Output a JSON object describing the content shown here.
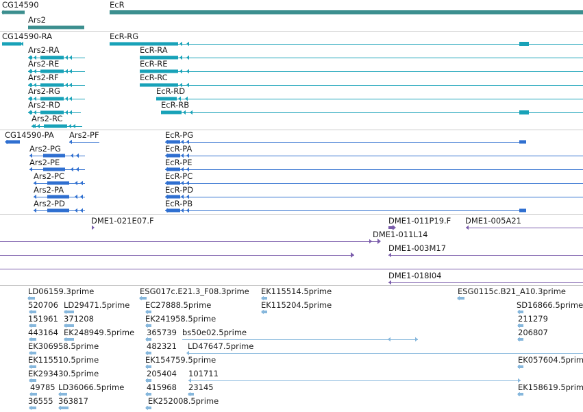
{
  "colors": {
    "gene": "#3c8f8f",
    "transcript": "#18a2b8",
    "protein": "#2f6fd0",
    "clone": "#7a5cab",
    "est": "#86b7dc",
    "divider": "#c8c8c8"
  },
  "tracks": {
    "genes": {
      "items": [
        {
          "id": "g-cg14590",
          "label": "CG14590"
        },
        {
          "id": "g-ecr",
          "label": "EcR"
        },
        {
          "id": "g-ars2",
          "label": "Ars2"
        }
      ]
    },
    "transcripts": {
      "items": [
        {
          "id": "t-cg14590-ra",
          "label": "CG14590-RA"
        },
        {
          "id": "t-ecr-rg",
          "label": "EcR-RG"
        },
        {
          "id": "t-ars2-ra",
          "label": "Ars2-RA"
        },
        {
          "id": "t-ecr-ra",
          "label": "EcR-RA"
        },
        {
          "id": "t-ars2-re",
          "label": "Ars2-RE"
        },
        {
          "id": "t-ecr-re",
          "label": "EcR-RE"
        },
        {
          "id": "t-ars2-rf",
          "label": "Ars2-RF"
        },
        {
          "id": "t-ecr-rc",
          "label": "EcR-RC"
        },
        {
          "id": "t-ars2-rg",
          "label": "Ars2-RG"
        },
        {
          "id": "t-ecr-rd",
          "label": "EcR-RD"
        },
        {
          "id": "t-ars2-rd",
          "label": "Ars2-RD"
        },
        {
          "id": "t-ecr-rb",
          "label": "EcR-RB"
        },
        {
          "id": "t-ars2-rc",
          "label": "Ars2-RC"
        }
      ]
    },
    "proteins": {
      "items": [
        {
          "id": "p-cg14590-pa",
          "label": "CG14590-PA"
        },
        {
          "id": "p-ars2-pf",
          "label": "Ars2-PF"
        },
        {
          "id": "p-ecr-pg",
          "label": "EcR-PG"
        },
        {
          "id": "p-ars2-pg",
          "label": "Ars2-PG"
        },
        {
          "id": "p-ecr-pa",
          "label": "EcR-PA"
        },
        {
          "id": "p-ars2-pe",
          "label": "Ars2-PE"
        },
        {
          "id": "p-ecr-pe",
          "label": "EcR-PE"
        },
        {
          "id": "p-ars2-pc",
          "label": "Ars2-PC"
        },
        {
          "id": "p-ecr-pc",
          "label": "EcR-PC"
        },
        {
          "id": "p-ars2-pa",
          "label": "Ars2-PA"
        },
        {
          "id": "p-ecr-pd",
          "label": "EcR-PD"
        },
        {
          "id": "p-ars2-pd",
          "label": "Ars2-PD"
        },
        {
          "id": "p-ecr-pb",
          "label": "EcR-PB"
        }
      ]
    },
    "clones": {
      "items": [
        {
          "id": "c-021e07",
          "label": "DME1-021E07.F"
        },
        {
          "id": "c-011p19",
          "label": "DME1-011P19.F"
        },
        {
          "id": "c-005a21",
          "label": "DME1-005A21"
        },
        {
          "id": "c-011l14",
          "label": "DME1-011L14"
        },
        {
          "id": "c-003m17",
          "label": "DME1-003M17"
        },
        {
          "id": "c-018i04",
          "label": "DME1-018I04"
        }
      ]
    },
    "ests": {
      "items": [
        {
          "id": "e-ld06159",
          "label": "LD06159.3prime"
        },
        {
          "id": "e-esg017c",
          "label": "ESG017c.E21.3_F08.3prime"
        },
        {
          "id": "e-ek115514",
          "label": "EK115514.5prime"
        },
        {
          "id": "e-esg0115c",
          "label": "ESG0115c.B21_A10.3prime"
        },
        {
          "id": "e-520706",
          "label": "520706"
        },
        {
          "id": "e-ld29471",
          "label": "LD29471.5prime"
        },
        {
          "id": "e-ec27888",
          "label": "EC27888.5prime"
        },
        {
          "id": "e-ek115204",
          "label": "EK115204.5prime"
        },
        {
          "id": "e-sd16866",
          "label": "SD16866.5prime"
        },
        {
          "id": "e-151961",
          "label": "151961"
        },
        {
          "id": "e-371208",
          "label": "371208"
        },
        {
          "id": "e-ek241958",
          "label": "EK241958.5prime"
        },
        {
          "id": "e-211279",
          "label": "211279"
        },
        {
          "id": "e-443164",
          "label": "443164"
        },
        {
          "id": "e-ek248949",
          "label": "EK248949.5prime"
        },
        {
          "id": "e-365739",
          "label": "365739"
        },
        {
          "id": "e-bs50e02",
          "label": "bs50e02.5prime"
        },
        {
          "id": "e-206807",
          "label": "206807"
        },
        {
          "id": "e-ek306958",
          "label": "EK306958.5prime"
        },
        {
          "id": "e-482321",
          "label": "482321"
        },
        {
          "id": "e-ld47647",
          "label": "LD47647.5prime"
        },
        {
          "id": "e-ek115510",
          "label": "EK115510.5prime"
        },
        {
          "id": "e-ek154759",
          "label": "EK154759.5prime"
        },
        {
          "id": "e-ek057604",
          "label": "EK057604.5prime"
        },
        {
          "id": "e-ek293430",
          "label": "EK293430.5prime"
        },
        {
          "id": "e-205404",
          "label": "205404"
        },
        {
          "id": "e-101711",
          "label": "101711"
        },
        {
          "id": "e-49785",
          "label": "49785"
        },
        {
          "id": "e-ld36066",
          "label": "LD36066.5prime"
        },
        {
          "id": "e-415968",
          "label": "415968"
        },
        {
          "id": "e-23145",
          "label": "23145"
        },
        {
          "id": "e-ek158619",
          "label": "EK158619.5prime"
        },
        {
          "id": "e-36555",
          "label": "36555"
        },
        {
          "id": "e-363817",
          "label": "363817"
        },
        {
          "id": "e-ek252008",
          "label": "EK252008.5prime"
        }
      ]
    }
  }
}
